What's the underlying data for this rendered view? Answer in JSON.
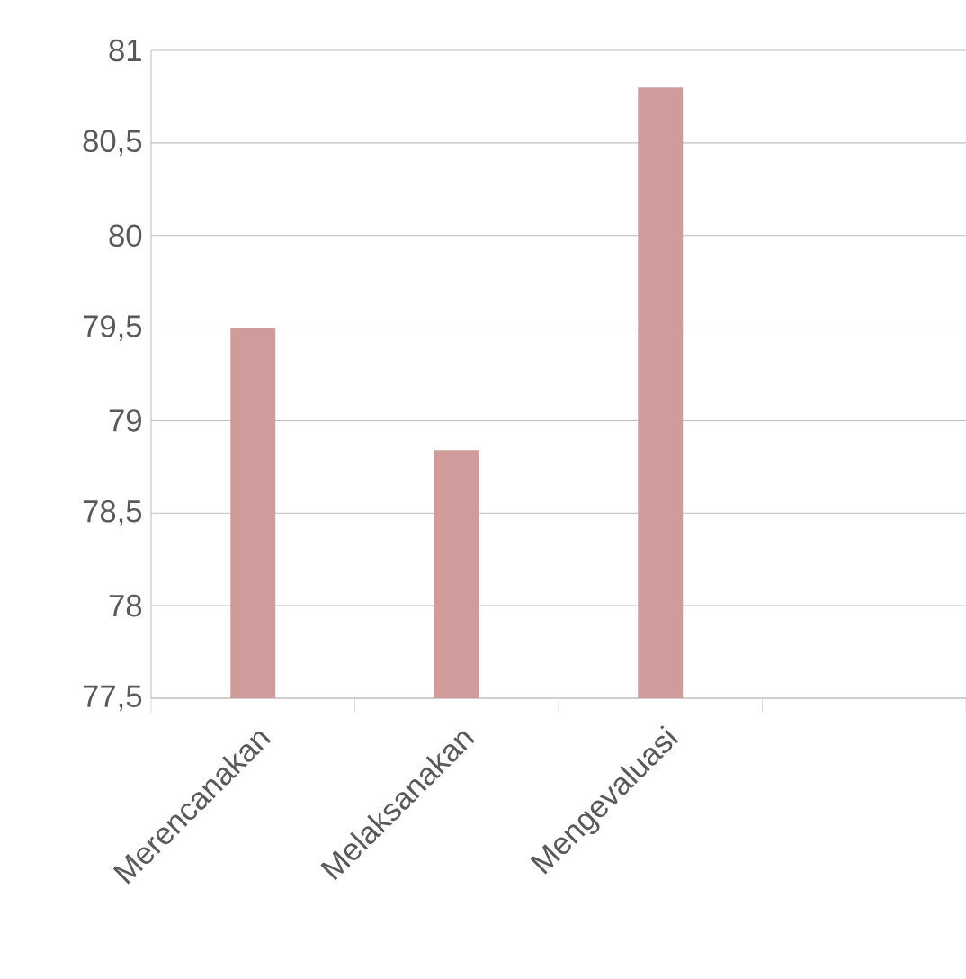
{
  "chart_data": {
    "type": "bar",
    "categories": [
      "Merencanakan",
      "Melaksanakan",
      "Mengevaluasi",
      null
    ],
    "values": [
      79.5,
      78.84,
      80.8,
      null
    ],
    "color": "#cf9c9b",
    "ylim": [
      77.5,
      81
    ],
    "yticks": [
      {
        "value": 77.5,
        "label": "77,5"
      },
      78,
      {
        "value": 78.5,
        "label": "78,5"
      },
      79,
      {
        "value": 79.5,
        "label": "79,5"
      },
      80,
      {
        "value": 80.5,
        "label": "80,5"
      },
      81
    ],
    "grid": "y"
  }
}
